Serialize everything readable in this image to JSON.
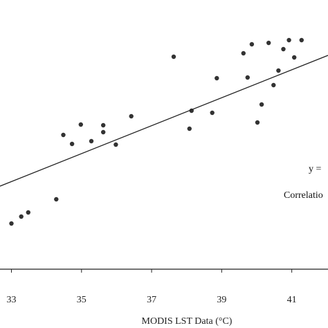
{
  "chart_data": {
    "type": "scatter",
    "title": "",
    "xlabel": "MODIS LST Data (°C)",
    "ylabel": "",
    "xticks": [
      33,
      35,
      37,
      39,
      41
    ],
    "xlim": [
      32.97,
      42.33
    ],
    "ylim": [
      0,
      474
    ],
    "grid": false,
    "series": [
      {
        "marker": "dot",
        "color": "#333333",
        "points": [
          [
            33.0,
            323
          ],
          [
            33.28,
            313
          ],
          [
            33.48,
            307
          ],
          [
            34.28,
            288
          ],
          [
            34.48,
            195
          ],
          [
            34.73,
            208
          ],
          [
            34.98,
            180
          ],
          [
            35.28,
            204
          ],
          [
            35.62,
            181
          ],
          [
            35.62,
            191
          ],
          [
            35.98,
            209
          ],
          [
            36.42,
            168
          ],
          [
            37.63,
            82
          ],
          [
            38.08,
            186
          ],
          [
            38.14,
            160
          ],
          [
            38.73,
            163
          ],
          [
            38.86,
            113
          ],
          [
            39.62,
            77
          ],
          [
            39.74,
            112
          ],
          [
            39.86,
            64
          ],
          [
            40.02,
            177
          ],
          [
            40.14,
            151
          ],
          [
            40.34,
            62
          ],
          [
            40.48,
            123
          ],
          [
            40.62,
            102
          ],
          [
            40.76,
            71
          ],
          [
            40.92,
            58
          ],
          [
            41.07,
            83
          ],
          [
            41.28,
            58
          ]
        ]
      }
    ],
    "trendline": {
      "x": [
        32.97,
        42.33
      ],
      "y": [
        269,
        80
      ]
    },
    "annotations": [
      "y =",
      "Correlatio"
    ]
  }
}
